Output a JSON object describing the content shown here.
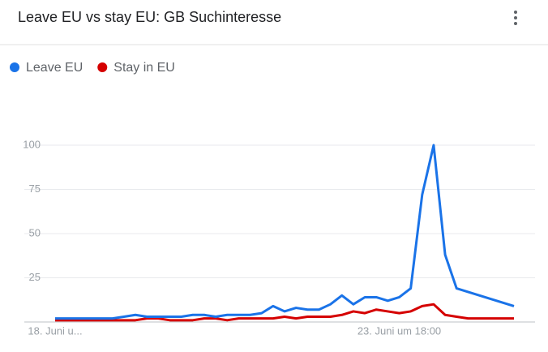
{
  "chart_data": {
    "type": "line",
    "title": "Leave EU vs stay EU: GB Suchinteresse",
    "categories": [
      "18. Juni u...",
      null,
      null,
      null,
      null,
      null,
      null,
      null,
      null,
      null,
      null,
      null,
      null,
      null,
      null,
      null,
      null,
      null,
      null,
      null,
      null,
      null,
      null,
      null,
      null,
      null,
      null,
      null,
      null,
      null,
      "23. Juni um 18:00",
      null,
      null,
      null,
      null,
      null,
      null,
      null,
      null,
      null,
      null
    ],
    "series": [
      {
        "name": "Leave EU",
        "color": "#1a73e8",
        "values": [
          2,
          2,
          2,
          2,
          2,
          2,
          3,
          4,
          3,
          3,
          3,
          3,
          4,
          4,
          3,
          4,
          4,
          4,
          5,
          9,
          6,
          8,
          7,
          7,
          10,
          15,
          10,
          14,
          14,
          12,
          14,
          19,
          72,
          100,
          38,
          19,
          17,
          15,
          13,
          11,
          9
        ]
      },
      {
        "name": "Stay in EU",
        "color": "#d50000",
        "values": [
          1,
          1,
          1,
          1,
          1,
          1,
          1,
          1,
          2,
          2,
          1,
          1,
          1,
          2,
          2,
          1,
          2,
          2,
          2,
          2,
          3,
          2,
          3,
          3,
          3,
          4,
          6,
          5,
          7,
          6,
          5,
          6,
          9,
          10,
          4,
          3,
          2,
          2,
          2,
          2,
          2
        ]
      }
    ],
    "ylim": [
      0,
      100
    ],
    "yticks": [
      25,
      50,
      75,
      100
    ],
    "grid": true,
    "legend": "top-left"
  }
}
